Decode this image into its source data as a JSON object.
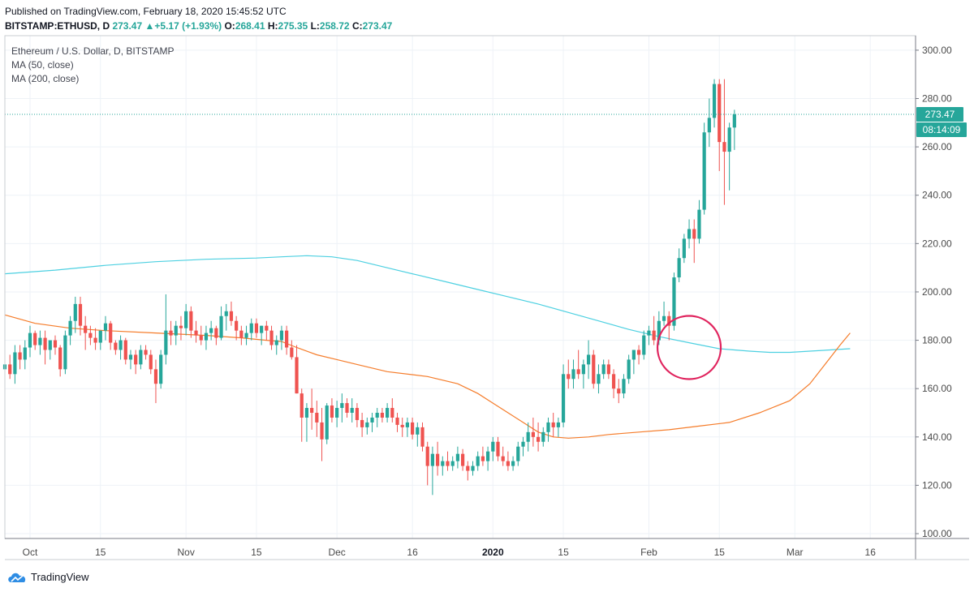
{
  "header": {
    "published": "Published on TradingView.com, February 18, 2020 15:45:52 UTC",
    "symbol": "BITSTAMP:ETHUSD, D",
    "last": "273.47",
    "change": "+5.17 (+1.93%)",
    "o_label": "O:",
    "o_val": "268.41",
    "h_label": "H:",
    "h_val": "275.35",
    "l_label": "L:",
    "l_val": "258.72",
    "c_label": "C:",
    "c_val": "273.47"
  },
  "legend": {
    "symbol_desc": "Ethereum / U.S. Dollar, D, BITSTAMP",
    "ma50": "MA (50, close)",
    "ma200": "MA (200, close)"
  },
  "price_label": "273.47",
  "countdown_label": "08:14:09",
  "footer": {
    "brand": "TradingView"
  },
  "colors": {
    "up": "#26a69a",
    "down": "#ef5350",
    "ma50": "#f57c2a",
    "ma200": "#4dd0e1",
    "highlight_circle": "#e0245e",
    "grid": "#eef2f7"
  },
  "chart_data": {
    "type": "candlestick",
    "y_axis": {
      "ticks": [
        100,
        120,
        140,
        160,
        180,
        200,
        220,
        240,
        260,
        280,
        300
      ],
      "tick_labels": [
        "100.00",
        "120.00",
        "140.00",
        "160.00",
        "180.00",
        "200.00",
        "220.00",
        "240.00",
        "260.00",
        "280.00",
        "300.00"
      ],
      "range": [
        98,
        306
      ]
    },
    "x_axis": {
      "range": [
        "2019-09-26",
        "2020-03-25"
      ],
      "ticks": [
        {
          "date": "2019-10-01",
          "label": "Oct",
          "bold": false
        },
        {
          "date": "2019-10-15",
          "label": "15",
          "bold": false
        },
        {
          "date": "2019-11-01",
          "label": "Nov",
          "bold": false
        },
        {
          "date": "2019-11-15",
          "label": "15",
          "bold": false
        },
        {
          "date": "2019-12-01",
          "label": "Dec",
          "bold": false
        },
        {
          "date": "2019-12-16",
          "label": "16",
          "bold": false
        },
        {
          "date": "2020-01-01",
          "label": "2020",
          "bold": true
        },
        {
          "date": "2020-01-15",
          "label": "15",
          "bold": false
        },
        {
          "date": "2020-02-01",
          "label": "Feb",
          "bold": false
        },
        {
          "date": "2020-02-15",
          "label": "15",
          "bold": false
        },
        {
          "date": "2020-03-01",
          "label": "Mar",
          "bold": false
        },
        {
          "date": "2020-03-16",
          "label": "16",
          "bold": false
        }
      ]
    },
    "first_candle_date": "2019-09-26",
    "candles": [
      [
        168,
        172,
        152,
        170
      ],
      [
        170,
        174,
        164,
        166
      ],
      [
        166,
        178,
        162,
        175
      ],
      [
        175,
        178,
        168,
        172
      ],
      [
        172,
        180,
        168,
        177
      ],
      [
        177,
        186,
        173,
        183
      ],
      [
        183,
        184,
        176,
        178
      ],
      [
        178,
        184,
        174,
        181
      ],
      [
        181,
        184,
        170,
        176
      ],
      [
        176,
        178,
        172,
        180
      ],
      [
        180,
        182,
        174,
        177
      ],
      [
        177,
        178,
        165,
        168
      ],
      [
        168,
        184,
        166,
        182
      ],
      [
        182,
        190,
        178,
        188
      ],
      [
        188,
        198,
        183,
        195
      ],
      [
        195,
        198,
        182,
        186
      ],
      [
        186,
        190,
        176,
        183
      ],
      [
        183,
        186,
        178,
        181
      ],
      [
        181,
        185,
        176,
        179
      ],
      [
        179,
        183,
        176,
        184
      ],
      [
        184,
        190,
        180,
        187
      ],
      [
        187,
        188,
        176,
        179
      ],
      [
        179,
        180,
        174,
        176
      ],
      [
        176,
        182,
        172,
        180
      ],
      [
        180,
        181,
        170,
        172
      ],
      [
        172,
        176,
        168,
        174
      ],
      [
        174,
        176,
        166,
        170
      ],
      [
        170,
        178,
        168,
        176
      ],
      [
        176,
        178,
        172,
        174
      ],
      [
        174,
        176,
        166,
        168
      ],
      [
        168,
        172,
        154,
        162
      ],
      [
        162,
        176,
        160,
        174
      ],
      [
        174,
        199,
        170,
        184
      ],
      [
        184,
        188,
        178,
        182
      ],
      [
        182,
        188,
        178,
        186
      ],
      [
        186,
        190,
        180,
        185
      ],
      [
        185,
        195,
        182,
        192
      ],
      [
        192,
        194,
        181,
        184
      ],
      [
        184,
        188,
        179,
        182
      ],
      [
        182,
        186,
        178,
        180
      ],
      [
        180,
        186,
        176,
        183
      ],
      [
        183,
        188,
        180,
        185
      ],
      [
        185,
        186,
        178,
        181
      ],
      [
        181,
        194,
        180,
        190
      ],
      [
        190,
        195,
        184,
        192
      ],
      [
        192,
        196,
        186,
        188
      ],
      [
        188,
        190,
        180,
        184
      ],
      [
        184,
        186,
        178,
        181
      ],
      [
        181,
        186,
        178,
        183
      ],
      [
        183,
        189,
        180,
        187
      ],
      [
        187,
        189,
        181,
        183
      ],
      [
        183,
        186,
        178,
        186
      ],
      [
        186,
        188,
        180,
        184
      ],
      [
        184,
        186,
        176,
        178
      ],
      [
        178,
        182,
        174,
        180
      ],
      [
        180,
        186,
        176,
        184
      ],
      [
        184,
        186,
        174,
        177
      ],
      [
        177,
        180,
        172,
        173
      ],
      [
        173,
        178,
        158,
        158
      ],
      [
        158,
        160,
        138,
        148
      ],
      [
        148,
        154,
        138,
        152
      ],
      [
        152,
        160,
        143,
        150
      ],
      [
        150,
        155,
        140,
        146
      ],
      [
        146,
        152,
        130,
        139
      ],
      [
        139,
        154,
        137,
        153
      ],
      [
        153,
        156,
        146,
        148
      ],
      [
        148,
        155,
        144,
        152
      ],
      [
        152,
        158,
        146,
        154
      ],
      [
        154,
        156,
        148,
        150
      ],
      [
        150,
        156,
        146,
        152
      ],
      [
        152,
        154,
        144,
        147
      ],
      [
        147,
        150,
        140,
        144
      ],
      [
        144,
        148,
        141,
        146
      ],
      [
        146,
        150,
        142,
        148
      ],
      [
        148,
        152,
        144,
        150
      ],
      [
        150,
        152,
        146,
        148
      ],
      [
        148,
        154,
        146,
        152
      ],
      [
        152,
        156,
        146,
        148
      ],
      [
        148,
        150,
        142,
        145
      ],
      [
        145,
        148,
        140,
        144
      ],
      [
        144,
        148,
        140,
        146
      ],
      [
        146,
        148,
        139,
        141
      ],
      [
        141,
        146,
        136,
        144
      ],
      [
        144,
        146,
        134,
        136
      ],
      [
        136,
        138,
        120,
        128
      ],
      [
        128,
        136,
        116,
        133
      ],
      [
        133,
        138,
        124,
        128
      ],
      [
        128,
        132,
        124,
        130
      ],
      [
        130,
        134,
        126,
        128
      ],
      [
        128,
        132,
        126,
        130
      ],
      [
        130,
        136,
        127,
        133
      ],
      [
        133,
        135,
        126,
        128
      ],
      [
        128,
        130,
        122,
        126
      ],
      [
        126,
        130,
        124,
        128
      ],
      [
        128,
        134,
        126,
        132
      ],
      [
        132,
        136,
        128,
        130
      ],
      [
        130,
        136,
        126,
        134
      ],
      [
        134,
        140,
        130,
        138
      ],
      [
        138,
        140,
        130,
        132
      ],
      [
        132,
        136,
        128,
        130
      ],
      [
        130,
        134,
        126,
        128
      ],
      [
        128,
        132,
        126,
        130
      ],
      [
        130,
        138,
        128,
        136
      ],
      [
        136,
        140,
        132,
        138
      ],
      [
        138,
        146,
        134,
        142
      ],
      [
        142,
        148,
        136,
        140
      ],
      [
        140,
        146,
        134,
        138
      ],
      [
        138,
        144,
        136,
        142
      ],
      [
        142,
        148,
        138,
        146
      ],
      [
        146,
        150,
        140,
        144
      ],
      [
        144,
        148,
        140,
        146
      ],
      [
        146,
        170,
        144,
        166
      ],
      [
        166,
        172,
        160,
        164
      ],
      [
        164,
        172,
        160,
        168
      ],
      [
        168,
        176,
        164,
        166
      ],
      [
        166,
        172,
        160,
        170
      ],
      [
        170,
        180,
        164,
        174
      ],
      [
        174,
        176,
        160,
        162
      ],
      [
        162,
        170,
        158,
        166
      ],
      [
        166,
        172,
        164,
        170
      ],
      [
        170,
        172,
        164,
        166
      ],
      [
        166,
        168,
        156,
        160
      ],
      [
        160,
        164,
        154,
        158
      ],
      [
        158,
        166,
        156,
        164
      ],
      [
        164,
        174,
        162,
        172
      ],
      [
        172,
        176,
        166,
        176
      ],
      [
        176,
        178,
        170,
        174
      ],
      [
        174,
        184,
        172,
        182
      ],
      [
        182,
        186,
        178,
        184
      ],
      [
        184,
        190,
        178,
        180
      ],
      [
        180,
        192,
        178,
        188
      ],
      [
        188,
        196,
        186,
        190
      ],
      [
        190,
        192,
        180,
        186
      ],
      [
        186,
        208,
        184,
        206
      ],
      [
        206,
        218,
        204,
        214
      ],
      [
        214,
        224,
        212,
        222
      ],
      [
        222,
        230,
        218,
        226
      ],
      [
        226,
        230,
        212,
        222
      ],
      [
        222,
        238,
        220,
        234
      ],
      [
        234,
        270,
        232,
        266
      ],
      [
        266,
        280,
        260,
        272
      ],
      [
        272,
        288,
        268,
        286
      ],
      [
        286,
        288,
        250,
        262
      ],
      [
        262,
        288,
        236,
        258
      ],
      [
        258,
        270,
        242,
        268
      ],
      [
        268,
        275.35,
        258.72,
        273.47
      ]
    ],
    "series": [
      {
        "name": "MA (50, close)",
        "values": [
          [
            0,
            190.5
          ],
          [
            6,
            187
          ],
          [
            13,
            185
          ],
          [
            20,
            184
          ],
          [
            30,
            183
          ],
          [
            40,
            182
          ],
          [
            47,
            181
          ],
          [
            52,
            180
          ],
          [
            55,
            179.5
          ],
          [
            58,
            177
          ],
          [
            62,
            174
          ],
          [
            66,
            172
          ],
          [
            70,
            170
          ],
          [
            76,
            167
          ],
          [
            84,
            165
          ],
          [
            90,
            162
          ],
          [
            94,
            158
          ],
          [
            97,
            154
          ],
          [
            100,
            150
          ],
          [
            103,
            146
          ],
          [
            106,
            142
          ],
          [
            109,
            140
          ],
          [
            112,
            139.5
          ],
          [
            116,
            140
          ],
          [
            120,
            141
          ],
          [
            126,
            142
          ],
          [
            132,
            143
          ],
          [
            138,
            144.5
          ],
          [
            144,
            146
          ],
          [
            150,
            150
          ],
          [
            156,
            155
          ],
          [
            160,
            162
          ],
          [
            163,
            170
          ],
          [
            166,
            178
          ],
          [
            168,
            183
          ]
        ]
      },
      {
        "name": "MA (200, close)",
        "values": [
          [
            0,
            207.5
          ],
          [
            10,
            209
          ],
          [
            20,
            211
          ],
          [
            30,
            212.5
          ],
          [
            40,
            213.5
          ],
          [
            50,
            214
          ],
          [
            55,
            214.5
          ],
          [
            60,
            215
          ],
          [
            65,
            214.5
          ],
          [
            70,
            213
          ],
          [
            76,
            210
          ],
          [
            82,
            207
          ],
          [
            88,
            204
          ],
          [
            94,
            201
          ],
          [
            100,
            198
          ],
          [
            106,
            195
          ],
          [
            112,
            191.5
          ],
          [
            118,
            188
          ],
          [
            124,
            184.5
          ],
          [
            130,
            181.5
          ],
          [
            136,
            179
          ],
          [
            142,
            176.5
          ],
          [
            148,
            175.5
          ],
          [
            152,
            175
          ],
          [
            156,
            175
          ],
          [
            160,
            175.5
          ],
          [
            164,
            176
          ],
          [
            168,
            176.5
          ]
        ]
      }
    ],
    "last_price": 273.47,
    "annotation": {
      "type": "circle",
      "date": "2020-02-09",
      "price": 177
    }
  }
}
